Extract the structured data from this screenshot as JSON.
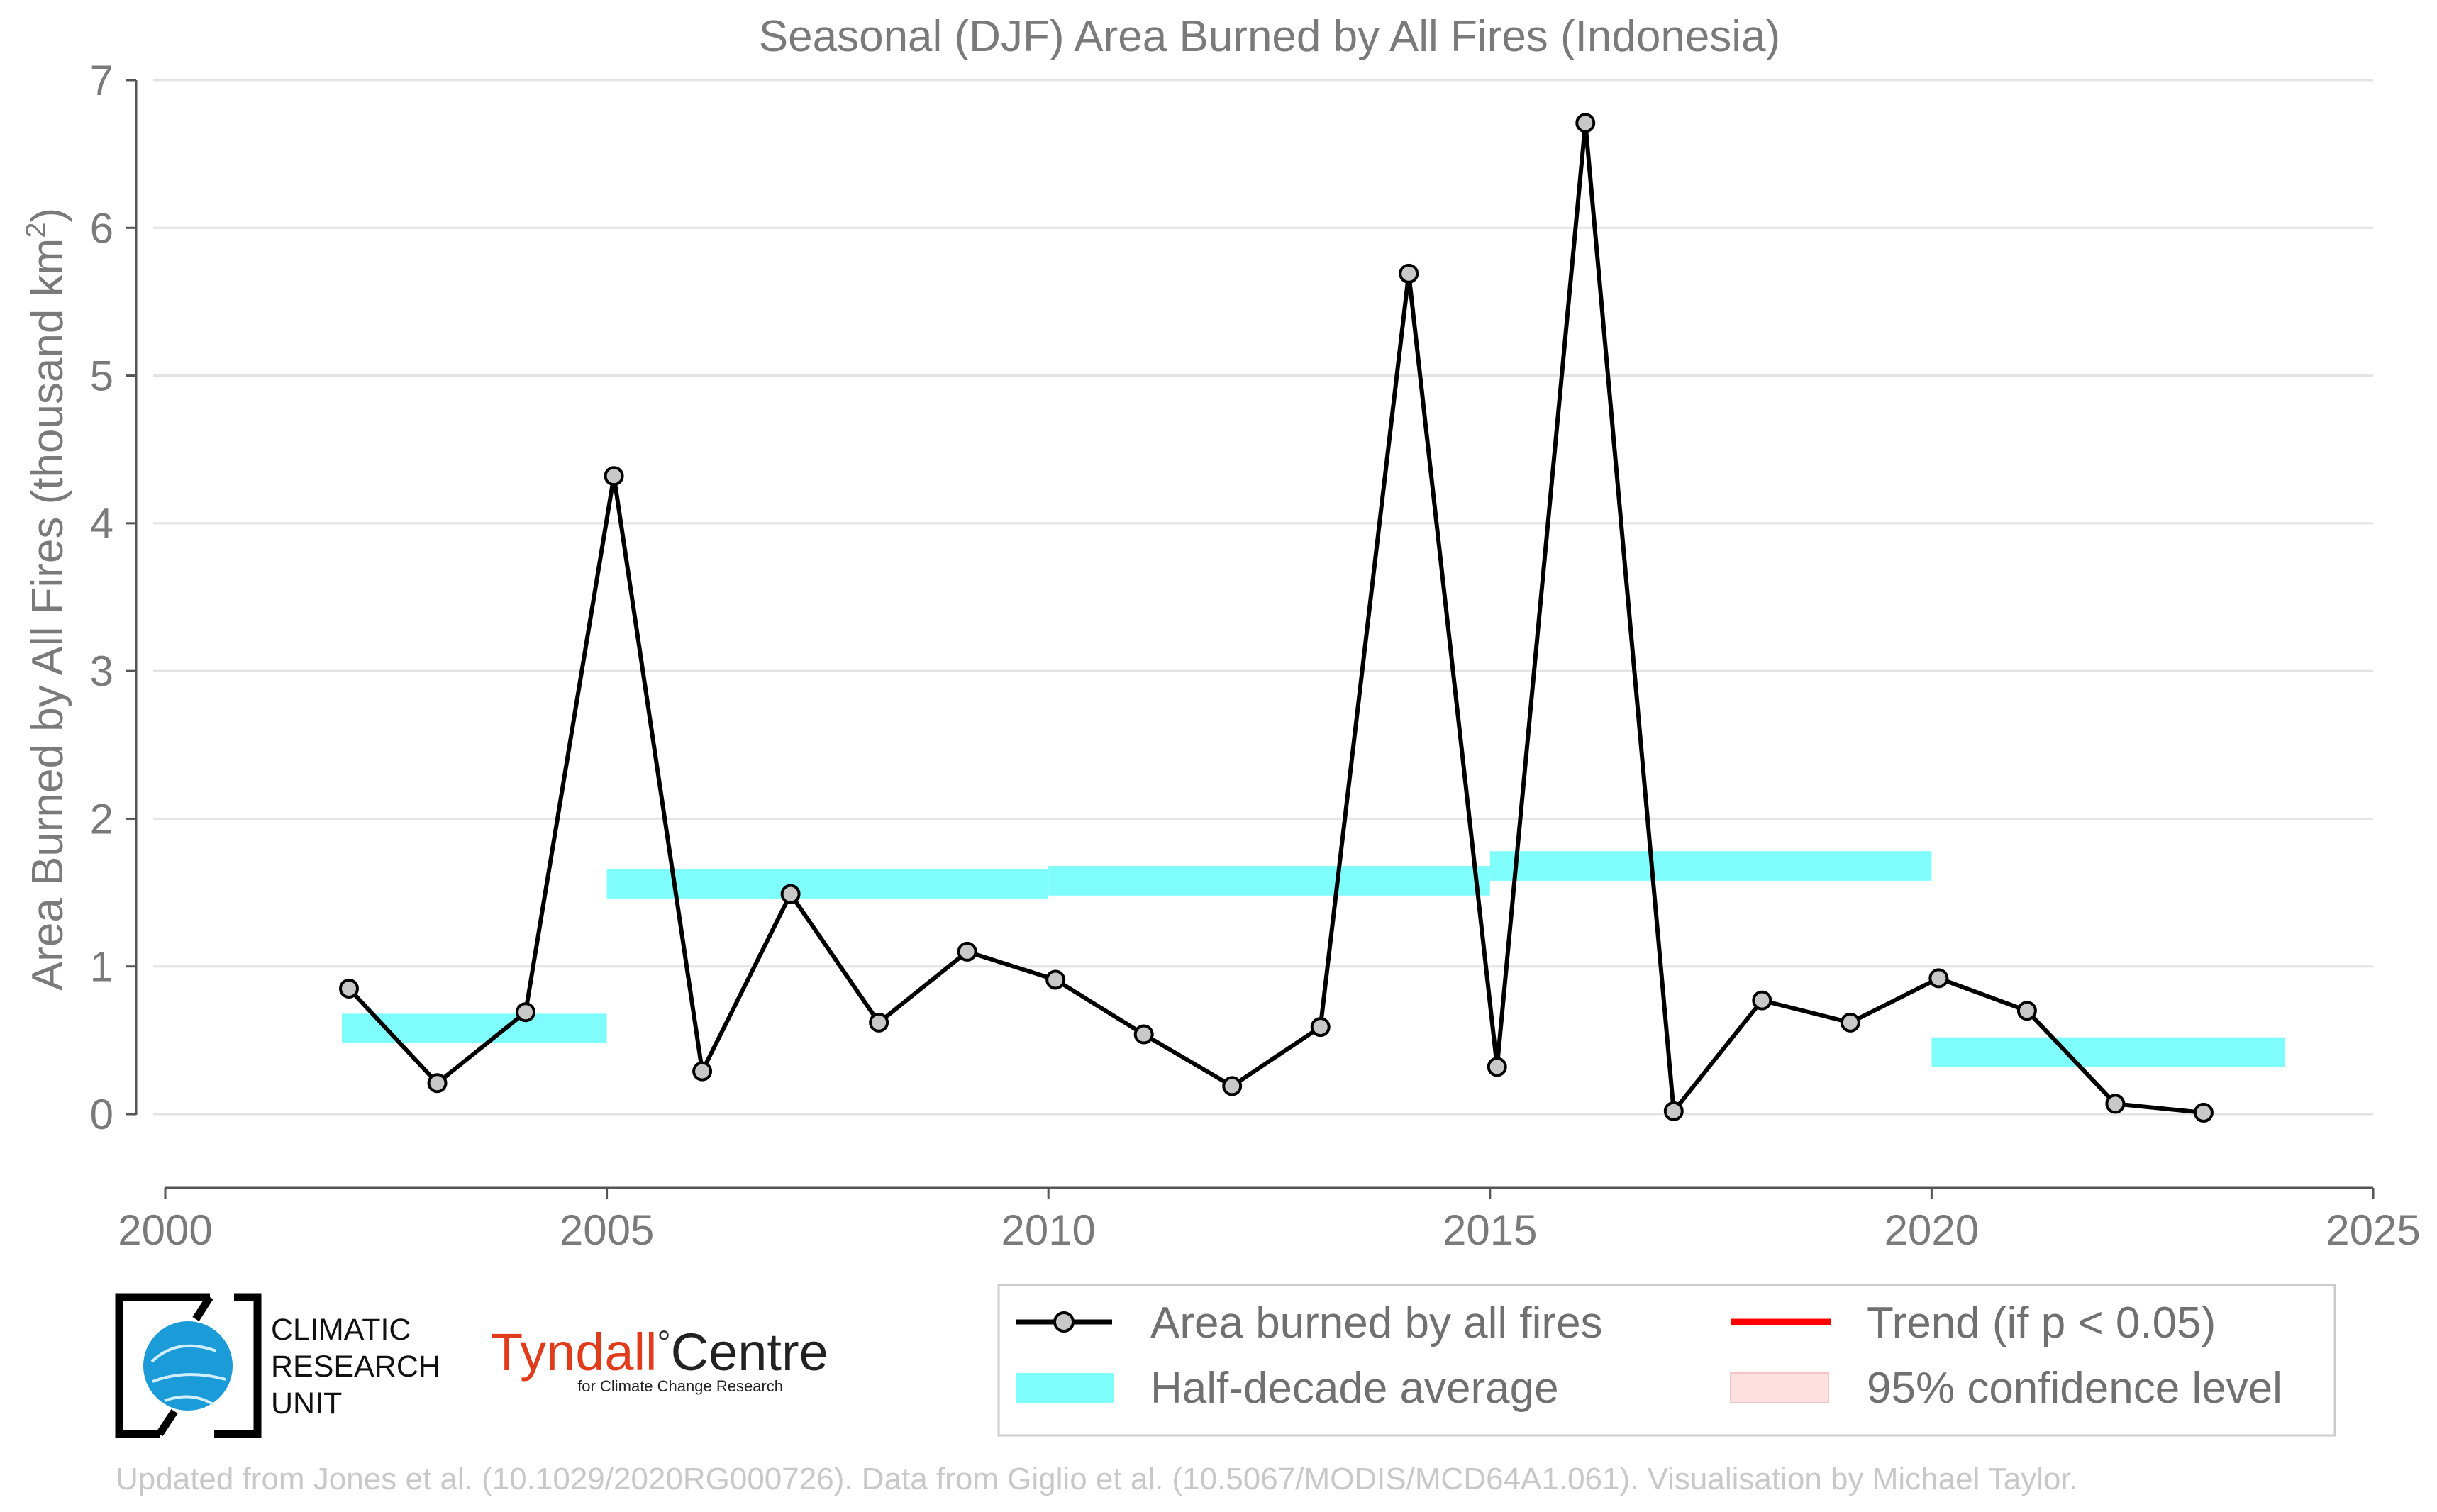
{
  "chart_data": {
    "type": "line",
    "title": "Seasonal (DJF) Area Burned by All Fires (Indonesia)",
    "ylabel": "Area Burned by All Fires (thousand km",
    "ylabel_sup": "2",
    "ylabel_end": ")",
    "xlabel": "",
    "xlim": [
      2000,
      2025
    ],
    "ylim": [
      -0.5,
      7
    ],
    "x_ticks": [
      2000,
      2005,
      2010,
      2015,
      2020,
      2025
    ],
    "x_tick_labels": [
      "2000",
      "2005",
      "2010",
      "2015",
      "2020",
      "2025"
    ],
    "y_ticks": [
      0,
      1,
      2,
      3,
      4,
      5,
      6,
      7
    ],
    "y_tick_labels": [
      "0",
      "1",
      "2",
      "3",
      "4",
      "5",
      "6",
      "7"
    ],
    "grid": "horizontal",
    "legend_position": "bottom-right",
    "series": [
      {
        "name": "Area burned by all fires",
        "kind": "line-markers",
        "color": "#000000",
        "marker_fill": "#c8c8c8",
        "x": [
          2002.08,
          2003.08,
          2004.08,
          2005.08,
          2006.08,
          2007.08,
          2008.08,
          2009.08,
          2010.08,
          2011.08,
          2012.08,
          2013.08,
          2014.08,
          2015.08,
          2016.08,
          2017.08,
          2018.08,
          2019.08,
          2020.08,
          2021.08,
          2022.08,
          2023.08
        ],
        "y": [
          0.85,
          0.21,
          0.69,
          4.32,
          0.29,
          1.49,
          0.62,
          1.1,
          0.91,
          0.54,
          0.19,
          0.59,
          5.69,
          0.32,
          6.71,
          0.02,
          0.77,
          0.62,
          0.92,
          0.7,
          0.07,
          0.01
        ]
      },
      {
        "name": "Half-decade average",
        "kind": "band",
        "color": "#7ffcfc",
        "segments": [
          {
            "x0": 2002,
            "x1": 2005,
            "y0": 0.48,
            "y1": 0.68
          },
          {
            "x0": 2005,
            "x1": 2010,
            "y0": 1.46,
            "y1": 1.66
          },
          {
            "x0": 2010,
            "x1": 2015,
            "y0": 1.48,
            "y1": 1.68
          },
          {
            "x0": 2015,
            "x1": 2020,
            "y0": 1.58,
            "y1": 1.78
          },
          {
            "x0": 2020,
            "x1": 2024,
            "y0": 0.32,
            "y1": 0.52
          }
        ]
      }
    ],
    "legend": [
      {
        "label": "Area burned by all fires",
        "style": "line-marker",
        "color": "#000000"
      },
      {
        "label": "Trend (if p < 0.05)",
        "style": "line",
        "color": "#ff0000"
      },
      {
        "label": "Half-decade average",
        "style": "patch",
        "color": "#7ffcfc"
      },
      {
        "label": "95% confidence level",
        "style": "patch",
        "color": "#ffe0e0"
      }
    ]
  },
  "logos": {
    "cru_lines": [
      "CLIMATIC",
      "RESEARCH",
      "UNIT"
    ],
    "tyndall_name": "Tyndall",
    "tyndall_degree": "°",
    "tyndall_centre": "Centre",
    "tyndall_sub": "for Climate Change Research"
  },
  "footer": "Updated from Jones et al. (10.1029/2020RG000726). Data from Giglio et al. (10.5067/MODIS/MCD64A1.061). Visualisation by Michael Taylor."
}
